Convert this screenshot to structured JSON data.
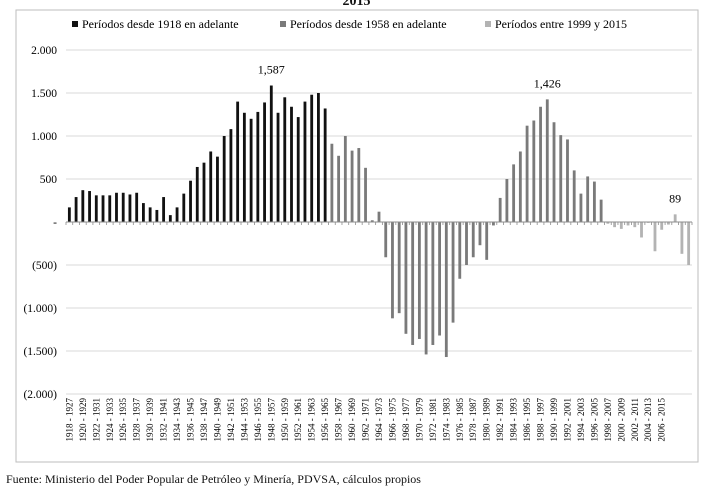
{
  "header": {
    "title_fragment": "2015"
  },
  "footer": {
    "source": "Fuente: Ministerio del Poder Popular de Petróleo y Minería, PDVSA, cálculos propios"
  },
  "chart_data": {
    "type": "bar",
    "title": "",
    "xlabel": "",
    "ylabel": "",
    "ylim": [
      -2000,
      2000
    ],
    "y_ticks": [
      {
        "value": 2000,
        "label": "2.000"
      },
      {
        "value": 1500,
        "label": "1.500"
      },
      {
        "value": 1000,
        "label": "1.000"
      },
      {
        "value": 500,
        "label": "500"
      },
      {
        "value": 0,
        "label": "-"
      },
      {
        "value": -500,
        "label": "(500)"
      },
      {
        "value": -1000,
        "label": "(1.000)"
      },
      {
        "value": -1500,
        "label": "(1.500)"
      },
      {
        "value": -2000,
        "label": "(2.000)"
      }
    ],
    "legend_position": "top",
    "legend": [
      {
        "name": "Períodos desde 1918 en adelante",
        "color": "#111111"
      },
      {
        "name": "Períodos desde 1958 en adelante",
        "color": "#7a7a7a"
      },
      {
        "name": "Períodos entre 1999 y 2015",
        "color": "#b3b3b3"
      }
    ],
    "x_tick_labels": [
      "1918 - 1927",
      "1920 - 1929",
      "1922 - 1931",
      "1924 - 1933",
      "1926 - 1935",
      "1928 - 1937",
      "1930 - 1939",
      "1932 - 1941",
      "1934 - 1943",
      "1936 - 1945",
      "1938 - 1947",
      "1940 - 1949",
      "1942 - 1951",
      "1944 - 1953",
      "1946 - 1955",
      "1948 - 1957",
      "1950 - 1959",
      "1952 - 1961",
      "1954 - 1963",
      "1956 - 1965",
      "1958 - 1967",
      "1960 - 1969",
      "1962 - 1971",
      "1964 - 1973",
      "1966 - 1975",
      "1968 - 1977",
      "1970 - 1979",
      "1972 - 1981",
      "1974 - 1983",
      "1976 - 1985",
      "1978 - 1987",
      "1980 - 1989",
      "1982 - 1991",
      "1984 - 1993",
      "1986 - 1995",
      "1988 - 1997",
      "1990 - 1999",
      "1992 - 2001",
      "1994 - 2003",
      "1996 - 2005",
      "1998 - 2007",
      "2000 - 2009",
      "2002 - 2011",
      "2004 - 2013",
      "2006 - 2015"
    ],
    "series": [
      {
        "name": "Períodos desde 1918 en adelante",
        "color": "#111111",
        "values": [
          170,
          290,
          370,
          360,
          310,
          310,
          310,
          340,
          340,
          320,
          340,
          220,
          170,
          140,
          290,
          80,
          170,
          330,
          480,
          640,
          690,
          820,
          760,
          1000,
          1080,
          1400,
          1270,
          1200,
          1280,
          1390,
          1587,
          1270,
          1450,
          1340,
          1220,
          1400,
          1480,
          1500,
          1320
        ]
      },
      {
        "name": "Períodos desde 1958 en adelante",
        "color": "#7a7a7a",
        "values": [
          910,
          770,
          1000,
          830,
          860,
          630,
          20,
          120,
          -410,
          -1120,
          -1060,
          -1300,
          -1430,
          -1360,
          -1540,
          -1430,
          -1320,
          -1570,
          -1170,
          -660,
          -500,
          -410,
          -270,
          -440,
          -40,
          280,
          500,
          670,
          820,
          1120,
          1180,
          1340,
          1426,
          1160,
          1010,
          960,
          600,
          330,
          530,
          470,
          260
        ]
      },
      {
        "name": "Períodos entre 1999 y 2015",
        "color": "#b3b3b3",
        "values": [
          -20,
          -60,
          -80,
          -40,
          -60,
          -180,
          -10,
          -340,
          -90,
          -30,
          89,
          -370,
          -500
        ]
      }
    ],
    "annotations": [
      {
        "text": "1,587",
        "series": 0,
        "index": 30,
        "value": 1587
      },
      {
        "text": "1,426",
        "series": 1,
        "index": 32,
        "value": 1426
      },
      {
        "text": "89",
        "series": 2,
        "index": 10,
        "value": 89
      }
    ]
  }
}
